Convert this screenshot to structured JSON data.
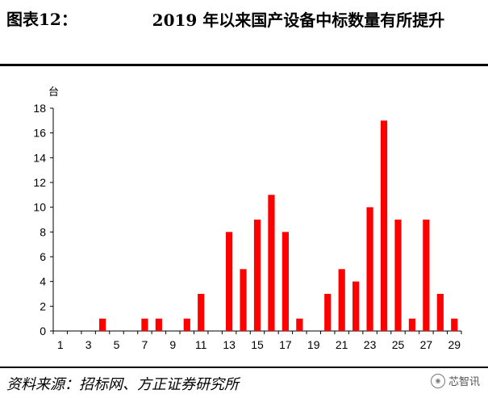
{
  "header": {
    "figure_label": "图表12：",
    "title": "2019 年以来国产设备中标数量有所提升"
  },
  "chart_data": {
    "type": "bar",
    "unit_label": "台",
    "categories": [
      "1",
      "2",
      "3",
      "4",
      "5",
      "6",
      "7",
      "8",
      "9",
      "10",
      "11",
      "12",
      "13",
      "14",
      "15",
      "16",
      "17",
      "18",
      "19",
      "20",
      "21",
      "22",
      "23",
      "24",
      "25",
      "26",
      "27",
      "28",
      "29"
    ],
    "x_tick_labels": [
      "1",
      "3",
      "5",
      "7",
      "9",
      "11",
      "13",
      "15",
      "17",
      "19",
      "21",
      "23",
      "25",
      "27",
      "29"
    ],
    "values": [
      0,
      0,
      0,
      1,
      0,
      0,
      1,
      1,
      0,
      1,
      3,
      0,
      8,
      5,
      9,
      11,
      8,
      1,
      0,
      3,
      5,
      4,
      10,
      17,
      9,
      1,
      9,
      3,
      1
    ],
    "ylim": [
      0,
      18
    ],
    "y_ticks": [
      0,
      2,
      4,
      6,
      8,
      10,
      12,
      14,
      16,
      18
    ],
    "bar_color": "#ff0000",
    "grid": false
  },
  "footer": {
    "source": "资料来源：招标网、方正证券研究所",
    "watermark_text": "芯智讯",
    "watermark_icon": "wechat-icon"
  }
}
